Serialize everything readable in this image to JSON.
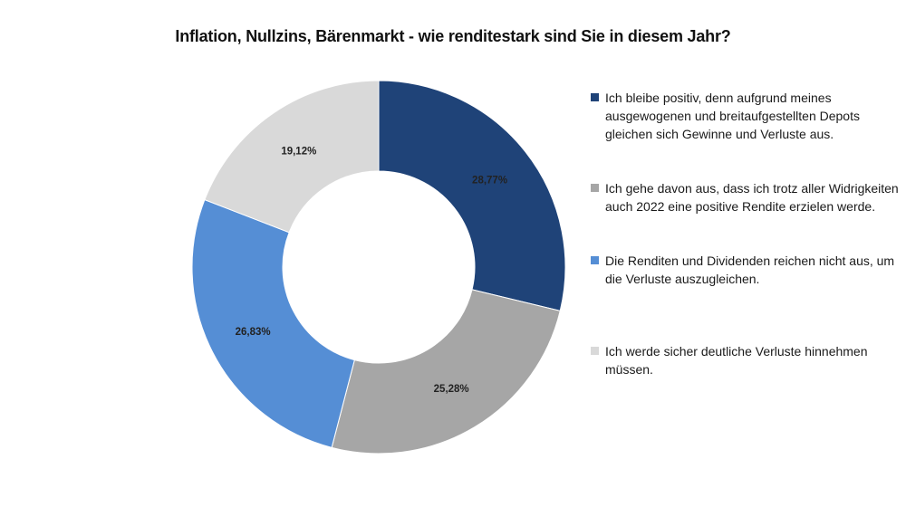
{
  "chart_data": {
    "type": "pie",
    "variant": "donut",
    "title": "Inflation, Nullzins, Bärenmarkt - wie renditestark sind Sie in diesem Jahr?",
    "unit": "%",
    "legend_position": "right",
    "slices": [
      {
        "label": "Ich bleibe positiv, denn aufgrund meines ausgewogenen und breitaufgestellten Depots gleichen sich Gewinne und Verluste aus.",
        "value": 28.77,
        "display": "28,77%",
        "color": "#1f4378"
      },
      {
        "label": "Ich gehe davon aus, dass ich trotz aller Widrigkeiten auch 2022 eine positive Rendite erzielen werde.",
        "value": 25.28,
        "display": "25,28%",
        "color": "#a6a6a6"
      },
      {
        "label": "Die Renditen und Dividenden reichen nicht aus, um die Verluste auszugleichen.",
        "value": 26.83,
        "display": "26,83%",
        "color": "#558ed5"
      },
      {
        "label": "Ich werde sicher deutliche Verluste hinnehmen müssen.",
        "value": 19.12,
        "display": "19,12%",
        "color": "#d9d9d9"
      }
    ]
  }
}
